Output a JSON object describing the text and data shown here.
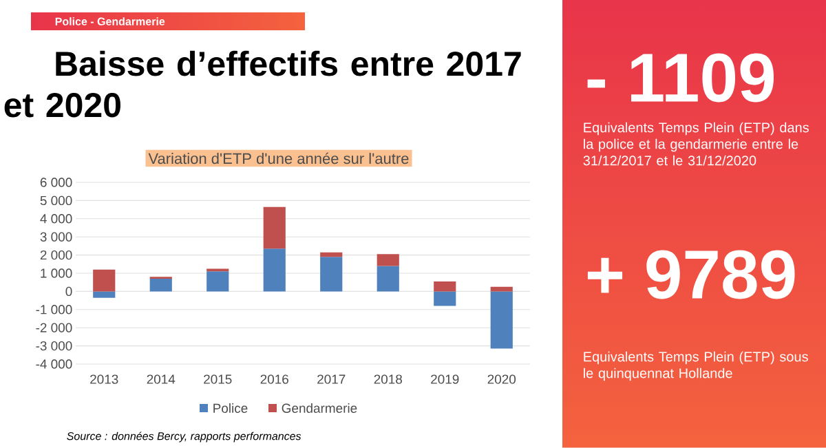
{
  "chart_data": {
    "type": "bar",
    "stacked": true,
    "title": "Baisse d’effectifs entre 2017 et 2020",
    "subtitle": "Variation d'ETP d'une année sur l'autre",
    "categories": [
      "2013",
      "2014",
      "2015",
      "2016",
      "2017",
      "2018",
      "2019",
      "2020"
    ],
    "series": [
      {
        "name": "Police",
        "color": "#4f81bd",
        "values": [
          -350,
          700,
          1100,
          2350,
          1900,
          1400,
          -800,
          -3150
        ]
      },
      {
        "name": "Gendarmerie",
        "color": "#c0504d",
        "values": [
          1200,
          100,
          150,
          2300,
          250,
          650,
          550,
          250
        ]
      }
    ],
    "ylim": [
      -4000,
      6000
    ],
    "yticks": [
      {
        "value": -4000,
        "label": "-4 000"
      },
      {
        "value": -3000,
        "label": "-3 000"
      },
      {
        "value": -2000,
        "label": "-2 000"
      },
      {
        "value": -1000,
        "label": "-1 000"
      },
      0,
      {
        "value": 1000,
        "label": "1 000"
      },
      {
        "value": 2000,
        "label": "2 000"
      },
      {
        "value": 3000,
        "label": "3 000"
      },
      {
        "value": 4000,
        "label": "4 000"
      },
      {
        "value": 5000,
        "label": "5 000"
      },
      {
        "value": 6000,
        "label": "6 000"
      }
    ],
    "grid": "y",
    "legend": "bottom",
    "annotations": [
      "Police - Gendarmerie",
      "- 1109",
      "Equivalents Temps Plein (ETP) dans la police et la gendarmerie entre le 31/12/2017 et le 31/12/2020",
      "+ 9789",
      "Equivalents Temps Plein (ETP) sous le quinquennat Hollande",
      "Source : données Bercy, rapports performances"
    ]
  }
}
